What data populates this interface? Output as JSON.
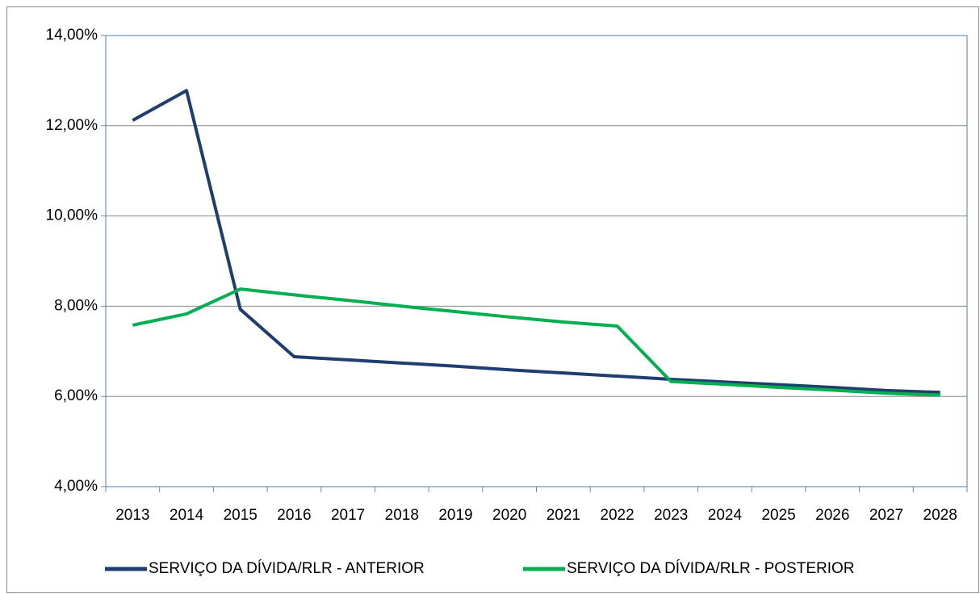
{
  "chart_data": {
    "type": "line",
    "categories": [
      "2013",
      "2014",
      "2015",
      "2016",
      "2017",
      "2018",
      "2019",
      "2020",
      "2021",
      "2022",
      "2023",
      "2024",
      "2025",
      "2026",
      "2027",
      "2028"
    ],
    "series": [
      {
        "name": "SERVIÇO DA DÍVIDA/RLR - ANTERIOR",
        "color": "#1f3d6e",
        "values": [
          12.12,
          12.78,
          7.93,
          6.88,
          6.81,
          6.74,
          6.67,
          6.59,
          6.52,
          6.45,
          6.38,
          6.32,
          6.26,
          6.2,
          6.13,
          6.09
        ]
      },
      {
        "name": "SERVIÇO DA DÍVIDA/RLR - POSTERIOR",
        "color": "#00b050",
        "values": [
          7.58,
          7.83,
          8.38,
          8.25,
          8.13,
          8.0,
          7.88,
          7.76,
          7.65,
          7.56,
          6.33,
          6.27,
          6.2,
          6.14,
          6.07,
          6.03
        ]
      }
    ],
    "ylim": [
      4,
      14
    ],
    "yticks": [
      {
        "value": 4,
        "label": "4,00%"
      },
      {
        "value": 6,
        "label": "6,00%"
      },
      {
        "value": 8,
        "label": "8,00%"
      },
      {
        "value": 10,
        "label": "10,00%"
      },
      {
        "value": 12,
        "label": "12,00%"
      },
      {
        "value": 14,
        "label": "14,00%"
      }
    ],
    "grid": true,
    "legend": "bottom"
  }
}
